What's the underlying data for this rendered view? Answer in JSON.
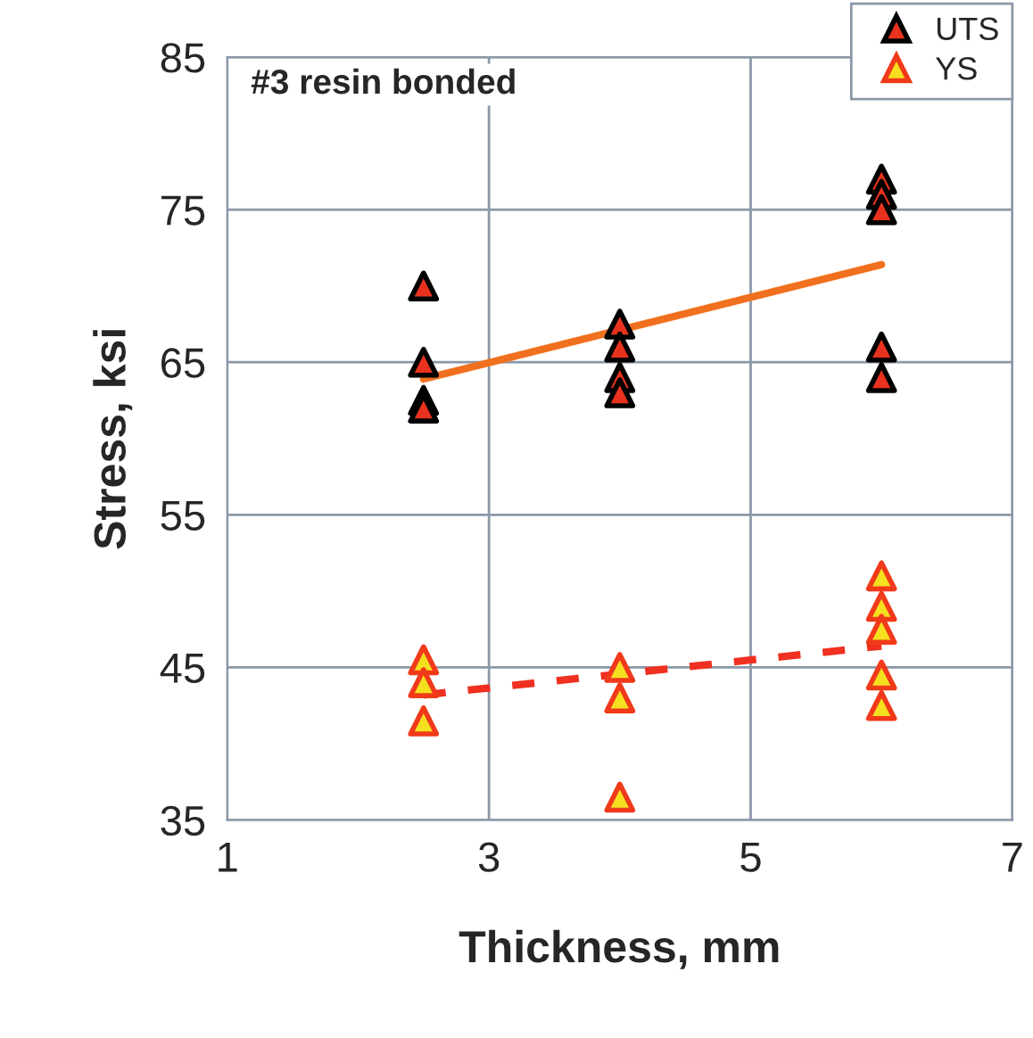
{
  "chart_data": {
    "type": "scatter",
    "title": "#3 resin bonded",
    "xlabel": "Thickness, mm",
    "ylabel": "Stress, ksi",
    "xlim": [
      1,
      7
    ],
    "xticks": [
      1,
      3,
      5,
      7
    ],
    "ylim": [
      35,
      85
    ],
    "yticks": [
      35,
      45,
      55,
      65,
      75,
      85
    ],
    "grid": true,
    "legend": "top right",
    "marker": "triangle",
    "series": [
      {
        "name": "UTS",
        "color": "#e8321e",
        "x": [
          2.5,
          2.5,
          2.5,
          2.5,
          4,
          4,
          4,
          4,
          6,
          6,
          6,
          6,
          6
        ],
        "values": [
          70,
          65,
          62.5,
          62,
          67.5,
          66,
          64,
          63,
          77,
          76,
          75,
          66,
          64
        ]
      },
      {
        "name": "YS",
        "color": "#f5e020",
        "x": [
          2.5,
          2.5,
          2.5,
          4,
          4,
          4,
          6,
          6,
          6,
          6,
          6
        ],
        "values": [
          45.5,
          44,
          41.5,
          45,
          43,
          36.5,
          51,
          49,
          47.5,
          44.5,
          42.5
        ]
      },
      {
        "type": "line",
        "color": "#f07020",
        "marker": "none",
        "line_style": "solid",
        "x": [
          2.5,
          6
        ],
        "values": [
          63.9,
          71.4
        ]
      },
      {
        "type": "line",
        "color": "#f03020",
        "marker": "none",
        "line_style": "dashed",
        "x": [
          2.5,
          6
        ],
        "values": [
          43.2,
          46.4
        ]
      }
    ]
  }
}
